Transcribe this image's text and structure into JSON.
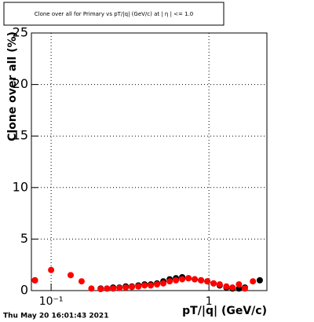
{
  "chart_data": {
    "type": "scatter",
    "title": "Clone  over all for Primary vs pT/|q| (GeV/c) at |  η  | <= 1.0",
    "x_label": "pT/|q| (GeV/c)",
    "y_label": "Clone  over all (%)",
    "footer": "Thu May 20 16:01:43 2021",
    "xlim": [
      0.075,
      2.33
    ],
    "ylim": [
      0,
      25
    ],
    "log_x": true,
    "grid": true,
    "xticks": [
      {
        "value": 0.1,
        "label": "10⁻¹"
      },
      1
    ],
    "yticks": [
      0,
      5,
      10,
      15,
      20,
      25
    ],
    "series": [
      {
        "name": "black",
        "color": "#000000",
        "x": [
          0.079,
          0.206,
          0.226,
          0.247,
          0.271,
          0.297,
          0.325,
          0.357,
          0.391,
          0.428,
          0.469,
          0.514,
          0.564,
          0.618,
          0.677,
          0.742,
          0.813,
          0.891,
          0.977,
          1.07,
          1.17,
          1.29,
          1.41,
          1.55,
          1.69,
          2.1
        ],
        "values": [
          1.0,
          0.2,
          0.2,
          0.3,
          0.3,
          0.4,
          0.4,
          0.5,
          0.6,
          0.6,
          0.7,
          0.9,
          1.1,
          1.2,
          1.3,
          1.2,
          1.1,
          1.0,
          0.9,
          0.7,
          0.5,
          0.3,
          0.2,
          0.2,
          0.3,
          1.0
        ]
      },
      {
        "name": "red",
        "color": "#ff0000",
        "x": [
          0.079,
          0.1,
          0.133,
          0.156,
          0.18,
          0.206,
          0.226,
          0.247,
          0.271,
          0.297,
          0.325,
          0.357,
          0.391,
          0.428,
          0.469,
          0.514,
          0.564,
          0.618,
          0.677,
          0.742,
          0.813,
          0.891,
          0.977,
          1.07,
          1.17,
          1.29,
          1.41,
          1.55,
          1.69,
          1.9
        ],
        "values": [
          1.0,
          2.0,
          1.5,
          0.9,
          0.2,
          0.15,
          0.2,
          0.2,
          0.25,
          0.3,
          0.35,
          0.4,
          0.5,
          0.5,
          0.6,
          0.7,
          0.9,
          1.0,
          1.1,
          1.2,
          1.1,
          1.0,
          0.9,
          0.7,
          0.6,
          0.4,
          0.3,
          0.6,
          0.2,
          0.9
        ]
      }
    ]
  }
}
